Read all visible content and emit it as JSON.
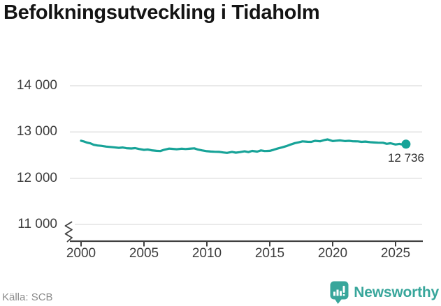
{
  "page": {
    "background": "#ffffff"
  },
  "chart_data": {
    "type": "line",
    "title": "Befolkningsutveckling i Tidaholm",
    "xlabel": "",
    "ylabel": "",
    "x_ticks": [
      2000,
      2005,
      2010,
      2015,
      2020,
      2025
    ],
    "y_ticks": [
      {
        "value": 14000,
        "label": "14 000"
      },
      {
        "value": 13000,
        "label": "13 000"
      },
      {
        "value": 12000,
        "label": "12 000"
      },
      {
        "value": 11000,
        "label": "11 000"
      }
    ],
    "ylim": [
      11000,
      14000
    ],
    "xlim": [
      1999.1,
      2027.1
    ],
    "y_axis_break": true,
    "grid": true,
    "legend": "none",
    "line_color": "#17a398",
    "grid_color": "#dcdcdc",
    "axis_color": "#404040",
    "points": [
      [
        2000.0,
        12810
      ],
      [
        2000.25,
        12792
      ],
      [
        2000.5,
        12768
      ],
      [
        2000.75,
        12752
      ],
      [
        2001.0,
        12722
      ],
      [
        2001.3,
        12708
      ],
      [
        2001.6,
        12700
      ],
      [
        2002.0,
        12684
      ],
      [
        2002.3,
        12676
      ],
      [
        2002.6,
        12668
      ],
      [
        2003.0,
        12656
      ],
      [
        2003.3,
        12664
      ],
      [
        2003.6,
        12648
      ],
      [
        2004.0,
        12642
      ],
      [
        2004.3,
        12650
      ],
      [
        2004.6,
        12632
      ],
      [
        2005.0,
        12612
      ],
      [
        2005.3,
        12620
      ],
      [
        2005.6,
        12604
      ],
      [
        2006.0,
        12592
      ],
      [
        2006.3,
        12586
      ],
      [
        2006.6,
        12614
      ],
      [
        2007.0,
        12640
      ],
      [
        2007.3,
        12634
      ],
      [
        2007.6,
        12626
      ],
      [
        2008.0,
        12638
      ],
      [
        2008.3,
        12630
      ],
      [
        2008.6,
        12636
      ],
      [
        2009.0,
        12646
      ],
      [
        2009.3,
        12618
      ],
      [
        2009.6,
        12602
      ],
      [
        2010.0,
        12584
      ],
      [
        2010.3,
        12576
      ],
      [
        2010.6,
        12572
      ],
      [
        2011.0,
        12568
      ],
      [
        2011.3,
        12556
      ],
      [
        2011.6,
        12548
      ],
      [
        2012.0,
        12568
      ],
      [
        2012.3,
        12552
      ],
      [
        2012.6,
        12562
      ],
      [
        2013.0,
        12580
      ],
      [
        2013.3,
        12564
      ],
      [
        2013.6,
        12590
      ],
      [
        2014.0,
        12574
      ],
      [
        2014.3,
        12600
      ],
      [
        2014.6,
        12586
      ],
      [
        2015.0,
        12592
      ],
      [
        2015.3,
        12614
      ],
      [
        2015.6,
        12640
      ],
      [
        2016.0,
        12668
      ],
      [
        2016.3,
        12692
      ],
      [
        2016.6,
        12722
      ],
      [
        2017.0,
        12758
      ],
      [
        2017.3,
        12776
      ],
      [
        2017.6,
        12796
      ],
      [
        2018.0,
        12788
      ],
      [
        2018.3,
        12786
      ],
      [
        2018.6,
        12808
      ],
      [
        2019.0,
        12798
      ],
      [
        2019.3,
        12822
      ],
      [
        2019.6,
        12838
      ],
      [
        2020.0,
        12802
      ],
      [
        2020.3,
        12812
      ],
      [
        2020.6,
        12818
      ],
      [
        2021.0,
        12802
      ],
      [
        2021.3,
        12808
      ],
      [
        2021.6,
        12798
      ],
      [
        2022.0,
        12796
      ],
      [
        2022.3,
        12786
      ],
      [
        2022.6,
        12792
      ],
      [
        2023.0,
        12778
      ],
      [
        2023.3,
        12772
      ],
      [
        2023.6,
        12768
      ],
      [
        2024.0,
        12766
      ],
      [
        2024.3,
        12744
      ],
      [
        2024.6,
        12756
      ],
      [
        2025.0,
        12728
      ],
      [
        2025.3,
        12742
      ],
      [
        2025.6,
        12724
      ],
      [
        2025.83,
        12736
      ]
    ],
    "annotation": {
      "label": "12 736",
      "x": 2025.83,
      "y": 12736
    }
  },
  "footer": {
    "source": "Källa: SCB",
    "brand": "Newsworthy",
    "brand_color": "#38a69b"
  }
}
